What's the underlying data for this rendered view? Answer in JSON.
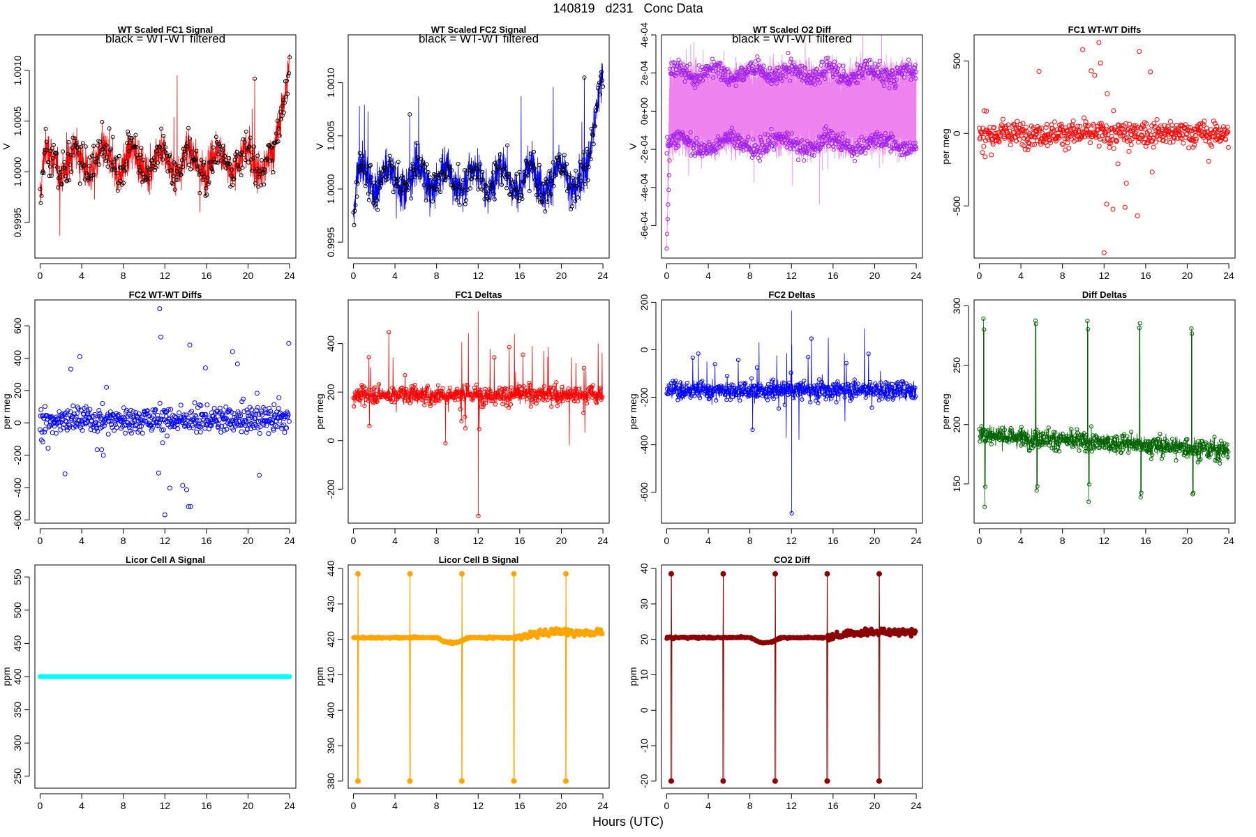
{
  "page": {
    "title": "140819   d231   Conc Data",
    "xlabel": "Hours (UTC)"
  },
  "chart_data": [
    {
      "id": "fc1_signal",
      "type": "line",
      "title": "WT Scaled FC1 Signal",
      "annotation": "black = WT-WT filtered",
      "ylabel": "V",
      "color": "#ff0000",
      "overlay_color": "#000000",
      "xlim": [
        -0.5,
        24.6
      ],
      "ylim": [
        0.99915,
        1.00135
      ],
      "xticks": [
        0,
        4,
        8,
        12,
        16,
        20,
        24
      ],
      "xtick_labels": [
        "0",
        "4",
        "8",
        "12",
        "16",
        "20",
        "24"
      ],
      "yticks": [
        0.9995,
        1.0,
        1.0005,
        1.001
      ],
      "ytick_labels": [
        "0.9995",
        "1.0000",
        "1.0005",
        "1.0010"
      ],
      "summary": {
        "baseline": 1.0001,
        "noise": 0.00025,
        "ends_rising_to": 1.0012
      }
    },
    {
      "id": "fc2_signal",
      "type": "line",
      "title": "WT Scaled FC2 Signal",
      "annotation": "black = WT-WT filtered",
      "ylabel": "V",
      "color": "#0000ff",
      "overlay_color": "#000000",
      "xlim": [
        -0.5,
        24.6
      ],
      "ylim": [
        0.99935,
        1.00145
      ],
      "xticks": [
        0,
        4,
        8,
        12,
        16,
        20,
        24
      ],
      "xtick_labels": [
        "0",
        "4",
        "8",
        "12",
        "16",
        "20",
        "24"
      ],
      "yticks": [
        0.9995,
        1.0,
        1.0005,
        1.001
      ],
      "ytick_labels": [
        "0.9995",
        "1.0000",
        "1.0005",
        "1.0010"
      ],
      "summary": {
        "baseline": 1.0001,
        "noise": 0.00025,
        "ends_rising_to": 1.0013
      }
    },
    {
      "id": "o2_diff",
      "type": "line",
      "title": "WT Scaled O2 Diff",
      "annotation": "black = WT-WT filtered",
      "ylabel": "V",
      "color": "#ee82ee",
      "overlay_color": "#a020f0",
      "xlim": [
        -0.5,
        24.6
      ],
      "ylim": [
        -0.00077,
        0.0004
      ],
      "xticks": [
        0,
        4,
        8,
        12,
        16,
        20,
        24
      ],
      "xtick_labels": [
        "0",
        "4",
        "8",
        "12",
        "16",
        "20",
        "24"
      ],
      "yticks": [
        -0.0006,
        -0.0004,
        -0.0002,
        0.0,
        0.0002,
        0.0004
      ],
      "ytick_labels": [
        "-6e-04",
        "-4e-04",
        "-2e-04",
        "0e+00",
        "2e-04",
        "4e-04"
      ],
      "summary": {
        "upper_band": 0.0002,
        "lower_band": -0.00017,
        "start_min": -0.00072
      }
    },
    {
      "id": "fc1_wtwt",
      "type": "scatter",
      "title": "FC1 WT-WT Diffs",
      "ylabel": "per meg",
      "color": "#ff0000",
      "xlim": [
        -0.5,
        24.6
      ],
      "ylim": [
        -860,
        680
      ],
      "xticks": [
        0,
        4,
        8,
        12,
        16,
        20,
        24
      ],
      "xtick_labels": [
        "0",
        "4",
        "8",
        "12",
        "16",
        "20",
        "24"
      ],
      "yticks": [
        -500,
        0,
        500
      ],
      "ytick_labels": [
        "-500",
        "0",
        "500"
      ],
      "summary": {
        "center": 0,
        "spread": 75,
        "max": 640,
        "min": -840
      }
    },
    {
      "id": "fc2_wtwt",
      "type": "scatter",
      "title": "FC2 WT-WT Diffs",
      "ylabel": "per meg",
      "color": "#0000ff",
      "xlim": [
        -0.5,
        24.6
      ],
      "ylim": [
        -620,
        760
      ],
      "xticks": [
        0,
        4,
        8,
        12,
        16,
        20,
        24
      ],
      "xtick_labels": [
        "0",
        "4",
        "8",
        "12",
        "16",
        "20",
        "24"
      ],
      "yticks": [
        -600,
        -400,
        -200,
        0,
        200,
        400,
        600
      ],
      "ytick_labels": [
        "-600",
        "-400",
        "-200",
        "0",
        "200",
        "400",
        "600"
      ],
      "summary": {
        "center": 20,
        "spread": 70,
        "max": 720,
        "min": -580
      }
    },
    {
      "id": "fc1_deltas",
      "type": "line",
      "title": "FC1 Deltas",
      "ylabel": "per meg",
      "color": "#ff0000",
      "markers": "open-circle",
      "xlim": [
        -0.5,
        24.6
      ],
      "ylim": [
        -340,
        580
      ],
      "xticks": [
        0,
        4,
        8,
        12,
        16,
        20,
        24
      ],
      "xtick_labels": [
        "0",
        "4",
        "8",
        "12",
        "16",
        "20",
        "24"
      ],
      "yticks": [
        -200,
        0,
        200,
        400
      ],
      "ytick_labels": [
        "-200",
        "0",
        "200",
        "400"
      ],
      "summary": {
        "center": 190,
        "spread": 45,
        "max": 550,
        "min": -320
      }
    },
    {
      "id": "fc2_deltas",
      "type": "line",
      "title": "FC2 Deltas",
      "ylabel": "per meg",
      "color": "#0000ff",
      "markers": "open-circle",
      "xlim": [
        -0.5,
        24.6
      ],
      "ylim": [
        -730,
        210
      ],
      "xticks": [
        0,
        4,
        8,
        12,
        16,
        20,
        24
      ],
      "xtick_labels": [
        "0",
        "4",
        "8",
        "12",
        "16",
        "20",
        "24"
      ],
      "yticks": [
        -600,
        -400,
        -200,
        0,
        200
      ],
      "ytick_labels": [
        "-600",
        "-400",
        "-200",
        "0",
        "200"
      ],
      "summary": {
        "center": -170,
        "spread": 45,
        "max": 170,
        "min": -710
      }
    },
    {
      "id": "diff_deltas",
      "type": "line",
      "title": "Diff Deltas",
      "ylabel": "per meg",
      "color": "#006400",
      "markers": "open-circle",
      "xlim": [
        -0.5,
        24.6
      ],
      "ylim": [
        117,
        305
      ],
      "xticks": [
        0,
        4,
        8,
        12,
        16,
        20,
        24
      ],
      "xtick_labels": [
        "0",
        "4",
        "8",
        "12",
        "16",
        "20",
        "24"
      ],
      "yticks": [
        150,
        200,
        250,
        300
      ],
      "ytick_labels": [
        "150",
        "200",
        "250",
        "300"
      ],
      "summary": {
        "baseline_start": 192,
        "baseline_end": 178,
        "spike_hours": [
          0.4,
          5.4,
          10.4,
          15.4,
          20.4
        ],
        "spike_max": 290,
        "spike_min": 130
      }
    },
    {
      "id": "licor_a",
      "type": "line",
      "title": "Licor Cell A Signal",
      "ylabel": "ppm",
      "color": "#00ffff",
      "markers": "filled-circle",
      "xlim": [
        -0.5,
        24.6
      ],
      "ylim": [
        232,
        568
      ],
      "xticks": [
        0,
        4,
        8,
        12,
        16,
        20,
        24
      ],
      "xtick_labels": [
        "0",
        "4",
        "8",
        "12",
        "16",
        "20",
        "24"
      ],
      "yticks": [
        250,
        300,
        350,
        400,
        450,
        500,
        550
      ],
      "ytick_labels": [
        "250",
        "300",
        "350",
        "400",
        "450",
        "500",
        "550"
      ],
      "summary": {
        "constant_value": 400
      }
    },
    {
      "id": "licor_b",
      "type": "line",
      "title": "Licor Cell B Signal",
      "ylabel": "ppm",
      "color": "#ffa500",
      "markers": "filled-circle",
      "xlim": [
        -0.5,
        24.6
      ],
      "ylim": [
        378,
        441
      ],
      "xticks": [
        0,
        4,
        8,
        12,
        16,
        20,
        24
      ],
      "xtick_labels": [
        "0",
        "4",
        "8",
        "12",
        "16",
        "20",
        "24"
      ],
      "yticks": [
        380,
        390,
        400,
        410,
        420,
        430,
        440
      ],
      "ytick_labels": [
        "380",
        "390",
        "400",
        "410",
        "420",
        "430",
        "440"
      ],
      "summary": {
        "baseline": 420.5,
        "dip_at_hour": 9.5,
        "dip_value": 419,
        "end_value": 422,
        "spike_hours": [
          0.4,
          5.4,
          10.4,
          15.4,
          20.4
        ],
        "spike_max": 438.5,
        "spike_min": 380
      }
    },
    {
      "id": "co2_diff",
      "type": "line",
      "title": "CO2 Diff",
      "ylabel": "ppm",
      "color": "#8b0000",
      "markers": "filled-circle",
      "xlim": [
        -0.5,
        24.6
      ],
      "ylim": [
        -22,
        41
      ],
      "xticks": [
        0,
        4,
        8,
        12,
        16,
        20,
        24
      ],
      "xtick_labels": [
        "0",
        "4",
        "8",
        "12",
        "16",
        "20",
        "24"
      ],
      "yticks": [
        -20,
        -10,
        0,
        10,
        20,
        30,
        40
      ],
      "ytick_labels": [
        "-20",
        "-10",
        "0",
        "10",
        "20",
        "30",
        "40"
      ],
      "summary": {
        "baseline": 20.5,
        "dip_at_hour": 9.5,
        "dip_value": 19,
        "end_value": 22,
        "spike_hours": [
          0.4,
          5.4,
          10.4,
          15.4,
          20.4
        ],
        "spike_max": 38.5,
        "spike_min": -20
      }
    }
  ]
}
